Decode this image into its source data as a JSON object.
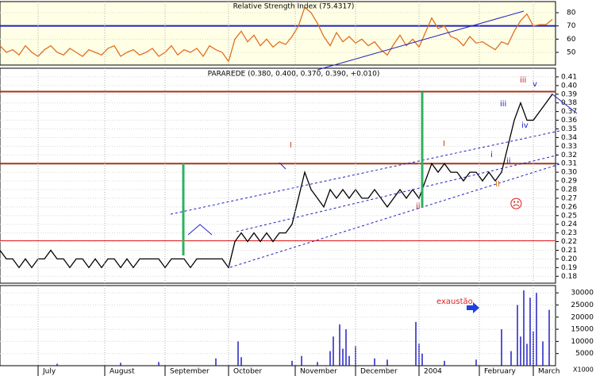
{
  "chart_data": [
    {
      "type": "line",
      "title": "Relative Strength Index (75.4317)",
      "xlim": [
        0,
        175
      ],
      "ylim": [
        40.4,
        88.4
      ],
      "yticks": [
        50,
        60,
        70,
        80
      ],
      "grid": true,
      "hlines": [
        70
      ],
      "hline_colors": [
        "#2020c0"
      ],
      "x": [
        0,
        2,
        4,
        6,
        8,
        10,
        12,
        14,
        16,
        18,
        20,
        22,
        24,
        26,
        28,
        30,
        32,
        34,
        36,
        38,
        40,
        42,
        44,
        46,
        48,
        50,
        52,
        54,
        56,
        58,
        60,
        62,
        64,
        66,
        68,
        70,
        72,
        74,
        76,
        78,
        80,
        82,
        84,
        86,
        88,
        90,
        92,
        94,
        96,
        98,
        100,
        102,
        104,
        106,
        108,
        110,
        112,
        114,
        116,
        118,
        120,
        122,
        124,
        126,
        128,
        130,
        132,
        134,
        136,
        138,
        140,
        142,
        144,
        146,
        148,
        150,
        152,
        154,
        156,
        158,
        160,
        162,
        164,
        166,
        168,
        170,
        172,
        174
      ],
      "series": [
        {
          "name": "RSI",
          "color": "#e07020",
          "values": [
            55,
            50,
            52,
            48,
            55,
            50,
            47,
            52,
            55,
            50,
            48,
            53,
            50,
            47,
            52,
            50,
            48,
            53,
            55,
            47,
            50,
            52,
            48,
            50,
            53,
            47,
            50,
            55,
            48,
            52,
            50,
            53,
            47,
            55,
            52,
            50,
            43,
            60,
            66,
            58,
            63,
            55,
            60,
            54,
            58,
            56,
            62,
            70,
            84,
            80,
            72,
            62,
            55,
            65,
            58,
            62,
            57,
            60,
            55,
            58,
            52,
            48,
            56,
            63,
            55,
            60,
            54,
            65,
            76,
            68,
            70,
            62,
            60,
            55,
            62,
            57,
            58,
            55,
            52,
            58,
            56,
            66,
            74,
            79,
            70,
            71,
            71,
            75
          ]
        }
      ]
    },
    {
      "type": "line",
      "title": "PARAREDE (0.380, 0.400, 0.370, 0.390, +0.010)",
      "xlim": [
        0,
        175
      ],
      "ylim": [
        0.172,
        0.42
      ],
      "grid": true,
      "yticks": [
        0.18,
        0.19,
        {
          "value": 0.2,
          "label": "0.20"
        },
        0.21,
        0.22,
        0.23,
        0.24,
        0.25,
        0.26,
        0.27,
        0.28,
        0.29,
        {
          "value": 0.3,
          "label": "0.30"
        },
        0.31,
        0.32,
        0.33,
        0.34,
        0.35,
        0.36,
        0.37,
        0.38,
        0.39,
        {
          "value": 0.4,
          "label": "0.40"
        },
        0.41
      ],
      "hlines": [
        0.393,
        0.31,
        0.221
      ],
      "hline_colors": [
        "#a03818",
        "#a03818",
        "#e02020"
      ],
      "annotations": [
        "iii",
        "v",
        "iii",
        "iv",
        "I",
        "i",
        "ii",
        "II",
        "ii",
        "I",
        "☹"
      ],
      "x": [
        0,
        2,
        4,
        6,
        8,
        10,
        12,
        14,
        16,
        18,
        20,
        22,
        24,
        26,
        28,
        30,
        32,
        34,
        36,
        38,
        40,
        42,
        44,
        46,
        48,
        50,
        52,
        54,
        56,
        58,
        60,
        62,
        64,
        66,
        68,
        70,
        72,
        74,
        76,
        78,
        80,
        82,
        84,
        86,
        88,
        90,
        92,
        94,
        96,
        98,
        100,
        102,
        104,
        106,
        108,
        110,
        112,
        114,
        116,
        118,
        120,
        122,
        124,
        126,
        128,
        130,
        132,
        134,
        136,
        138,
        140,
        142,
        144,
        146,
        148,
        150,
        152,
        154,
        156,
        158,
        160,
        162,
        164,
        166,
        168,
        170,
        172,
        174
      ],
      "series": [
        {
          "name": "PARAREDE",
          "color": "#000000",
          "values": [
            0.21,
            0.2,
            0.2,
            0.19,
            0.2,
            0.19,
            0.2,
            0.2,
            0.21,
            0.2,
            0.2,
            0.19,
            0.2,
            0.2,
            0.19,
            0.2,
            0.19,
            0.2,
            0.2,
            0.19,
            0.2,
            0.19,
            0.2,
            0.2,
            0.2,
            0.2,
            0.19,
            0.2,
            0.2,
            0.2,
            0.19,
            0.2,
            0.2,
            0.2,
            0.2,
            0.2,
            0.19,
            0.22,
            0.23,
            0.22,
            0.23,
            0.22,
            0.23,
            0.22,
            0.23,
            0.23,
            0.24,
            0.27,
            0.3,
            0.28,
            0.27,
            0.26,
            0.28,
            0.27,
            0.28,
            0.27,
            0.28,
            0.27,
            0.27,
            0.28,
            0.27,
            0.26,
            0.27,
            0.28,
            0.27,
            0.28,
            0.27,
            0.29,
            0.31,
            0.3,
            0.31,
            0.3,
            0.3,
            0.29,
            0.3,
            0.3,
            0.29,
            0.3,
            0.29,
            0.3,
            0.33,
            0.36,
            0.38,
            0.36,
            0.36,
            0.37,
            0.38,
            0.39
          ]
        }
      ]
    },
    {
      "type": "bar",
      "y_unit_label": "X1000",
      "annotations": [
        "exaustão"
      ],
      "xlim": [
        0,
        175
      ],
      "ylim": [
        0,
        33000
      ],
      "yticks": [
        5000,
        10000,
        15000,
        20000,
        25000,
        30000
      ],
      "grid": true,
      "xticks": [
        {
          "value": 12,
          "label": "July"
        },
        {
          "value": 33,
          "label": "August"
        },
        {
          "value": 52,
          "label": "September"
        },
        {
          "value": 72,
          "label": "October"
        },
        {
          "value": 93,
          "label": "November"
        },
        {
          "value": 112,
          "label": "December"
        },
        {
          "value": 132,
          "label": "2004"
        },
        {
          "value": 151,
          "label": "February"
        },
        {
          "value": 168,
          "label": "March"
        }
      ],
      "x": [
        18,
        38,
        50,
        68,
        75,
        76,
        92,
        95,
        100,
        104,
        105,
        107,
        108,
        109,
        110,
        112,
        118,
        122,
        131,
        132,
        133,
        140,
        150,
        158,
        161,
        163,
        164,
        165,
        166,
        167,
        168,
        169,
        171,
        173
      ],
      "series": [
        {
          "name": "Volume",
          "color": "#2020c0",
          "values": [
            800,
            1200,
            1500,
            3000,
            10000,
            3500,
            2000,
            4000,
            1500,
            6000,
            12000,
            17000,
            7000,
            15000,
            4000,
            8000,
            3000,
            2500,
            18000,
            9000,
            5000,
            2000,
            2500,
            15000,
            6000,
            25000,
            12000,
            31000,
            9000,
            28000,
            14000,
            30000,
            10000,
            23000
          ]
        }
      ]
    }
  ]
}
